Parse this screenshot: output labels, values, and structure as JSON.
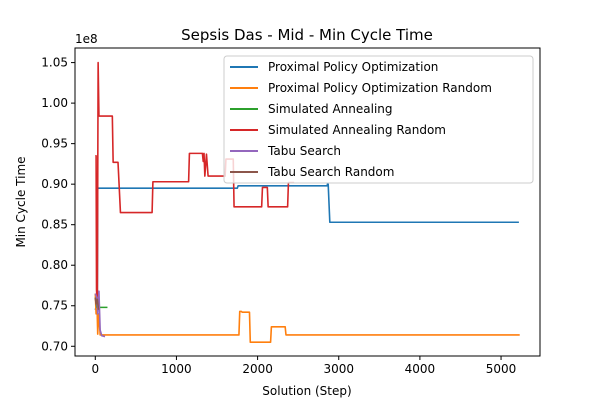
{
  "chart_data": {
    "type": "line",
    "title": "Sepsis Das - Mid - Min Cycle Time",
    "xlabel": "Solution (Step)",
    "ylabel": "Min Cycle Time",
    "y_offset_label": "1e8",
    "xlim": [
      -250,
      5480
    ],
    "ylim": [
      0.688,
      1.068
    ],
    "x_ticks": [
      0,
      1000,
      2000,
      3000,
      4000,
      5000
    ],
    "x_tick_labels": [
      "0",
      "1000",
      "2000",
      "3000",
      "4000",
      "5000"
    ],
    "y_ticks": [
      0.7,
      0.75,
      0.8,
      0.85,
      0.9,
      0.95,
      1.0,
      1.05
    ],
    "y_tick_labels": [
      "0.70",
      "0.75",
      "0.80",
      "0.85",
      "0.90",
      "0.95",
      "1.00",
      "1.05"
    ],
    "grid": false,
    "legend_position": "top-right",
    "series": [
      {
        "name": "Proximal Policy Optimization",
        "color": "#1f77b4",
        "points": [
          [
            0,
            0.745
          ],
          [
            15,
            0.75
          ],
          [
            25,
            0.76
          ],
          [
            30,
            0.895
          ],
          [
            1750,
            0.895
          ],
          [
            1760,
            0.898
          ],
          [
            2500,
            0.898
          ],
          [
            2860,
            0.898
          ],
          [
            2860,
            0.9
          ],
          [
            2870,
            0.9
          ],
          [
            2890,
            0.853
          ],
          [
            5220,
            0.853
          ]
        ]
      },
      {
        "name": "Proximal Policy Optimization Random",
        "color": "#ff7f0e",
        "points": [
          [
            0,
            0.765
          ],
          [
            10,
            0.74
          ],
          [
            20,
            0.755
          ],
          [
            30,
            0.715
          ],
          [
            40,
            0.74
          ],
          [
            50,
            0.73
          ],
          [
            60,
            0.714
          ],
          [
            1770,
            0.714
          ],
          [
            1780,
            0.743
          ],
          [
            1800,
            0.743
          ],
          [
            1810,
            0.742
          ],
          [
            1900,
            0.742
          ],
          [
            1910,
            0.705
          ],
          [
            2160,
            0.705
          ],
          [
            2170,
            0.724
          ],
          [
            2340,
            0.724
          ],
          [
            2350,
            0.714
          ],
          [
            5230,
            0.714
          ]
        ]
      },
      {
        "name": "Simulated Annealing",
        "color": "#2ca02c",
        "points": [
          [
            0,
            0.76
          ],
          [
            20,
            0.748
          ],
          [
            40,
            0.748
          ],
          [
            60,
            0.748
          ],
          [
            80,
            0.748
          ],
          [
            150,
            0.748
          ]
        ]
      },
      {
        "name": "Simulated Annealing Random",
        "color": "#d62728",
        "points": [
          [
            0,
            0.935
          ],
          [
            10,
            0.935
          ],
          [
            15,
            0.77
          ],
          [
            25,
            0.75
          ],
          [
            35,
            1.05
          ],
          [
            45,
            0.984
          ],
          [
            60,
            0.984
          ],
          [
            210,
            0.984
          ],
          [
            220,
            0.927
          ],
          [
            280,
            0.927
          ],
          [
            310,
            0.865
          ],
          [
            700,
            0.865
          ],
          [
            710,
            0.903
          ],
          [
            1150,
            0.903
          ],
          [
            1160,
            0.938
          ],
          [
            1320,
            0.938
          ],
          [
            1330,
            0.928
          ],
          [
            1340,
            0.938
          ],
          [
            1350,
            0.91
          ],
          [
            1370,
            0.937
          ],
          [
            1390,
            0.91
          ],
          [
            1600,
            0.91
          ],
          [
            1610,
            0.931
          ],
          [
            1700,
            0.931
          ],
          [
            1710,
            0.872
          ],
          [
            2050,
            0.872
          ],
          [
            2060,
            0.896
          ],
          [
            2120,
            0.896
          ],
          [
            2130,
            0.872
          ],
          [
            2370,
            0.872
          ],
          [
            2380,
            0.902
          ],
          [
            2450,
            0.902
          ]
        ]
      },
      {
        "name": "Tabu Search",
        "color": "#9467bd",
        "points": [
          [
            0,
            0.765
          ],
          [
            20,
            0.76
          ],
          [
            30,
            0.74
          ],
          [
            45,
            0.768
          ],
          [
            60,
            0.72
          ],
          [
            80,
            0.713
          ],
          [
            120,
            0.712
          ]
        ]
      },
      {
        "name": "Tabu Search Random",
        "color": "#8c564b",
        "points": [
          [
            0,
            0.76
          ],
          [
            10,
            0.752
          ],
          [
            25,
            0.758
          ],
          [
            40,
            0.745
          ]
        ]
      }
    ]
  }
}
